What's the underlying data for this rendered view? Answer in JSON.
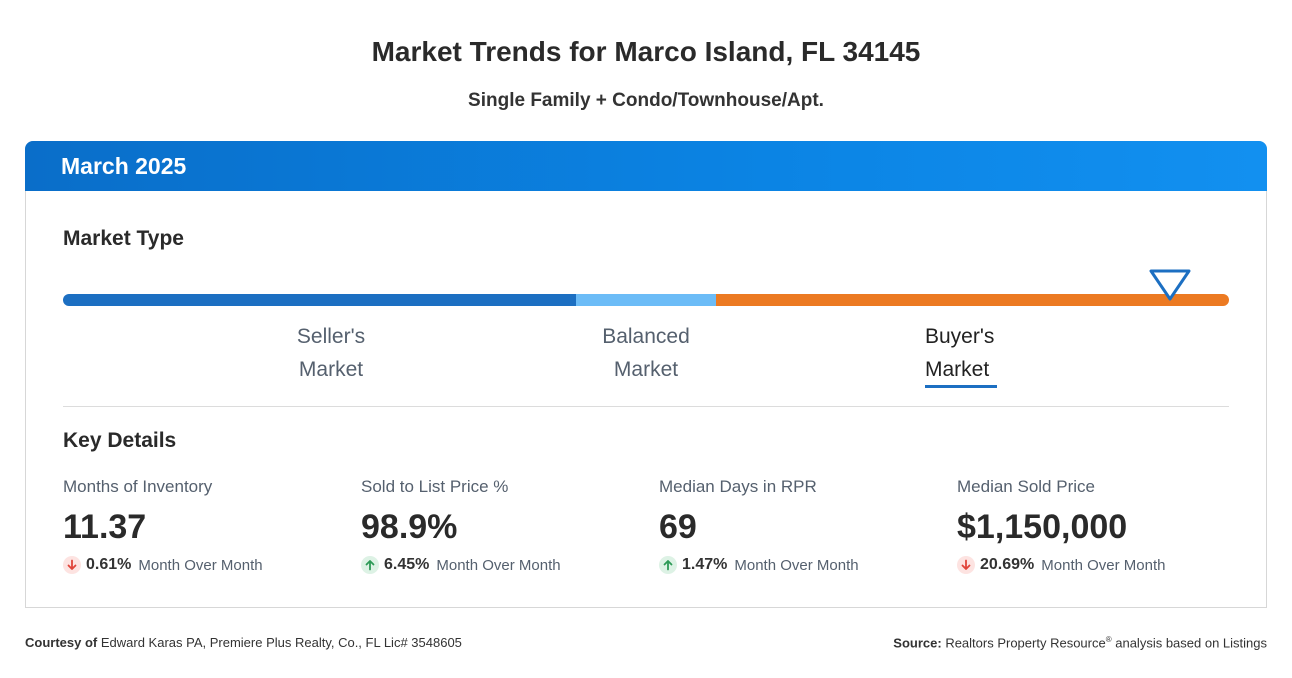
{
  "header": {
    "title": "Market Trends for Marco Island, FL 34145",
    "subtitle": "Single Family + Condo/Townhouse/Apt."
  },
  "card": {
    "period": "March 2025",
    "market_type": {
      "heading": "Market Type",
      "labels": [
        {
          "line1": "Seller's",
          "line2": "Market"
        },
        {
          "line1": "Balanced",
          "line2": "Market"
        },
        {
          "line1": "Buyer's",
          "line2": "Market"
        }
      ],
      "active": "Buyer's Market",
      "indicator_fraction": 0.95,
      "colors": {
        "seller": "#1c6fc2",
        "balanced": "#6cbcf7",
        "buyer": "#ec7a22",
        "marker": "#1c6fc2"
      }
    },
    "key_details": {
      "heading": "Key Details",
      "metrics": [
        {
          "label": "Months of Inventory",
          "value": "11.37",
          "direction": "down",
          "change": "0.61%",
          "period": "Month Over Month"
        },
        {
          "label": "Sold to List Price %",
          "value": "98.9%",
          "direction": "up",
          "change": "6.45%",
          "period": "Month Over Month"
        },
        {
          "label": "Median Days in RPR",
          "value": "69",
          "direction": "up",
          "change": "1.47%",
          "period": "Month Over Month"
        },
        {
          "label": "Median Sold Price",
          "value": "$1,150,000",
          "direction": "down",
          "change": "20.69%",
          "period": "Month Over Month"
        }
      ]
    }
  },
  "footer": {
    "courtesy_label": "Courtesy of",
    "courtesy_text": "Edward Karas PA, Premiere Plus Realty, Co., FL Lic# 3548605",
    "source_label": "Source:",
    "source_text_1": "Realtors Property Resource",
    "source_reg": "®",
    "source_text_2": " analysis based on Listings"
  }
}
